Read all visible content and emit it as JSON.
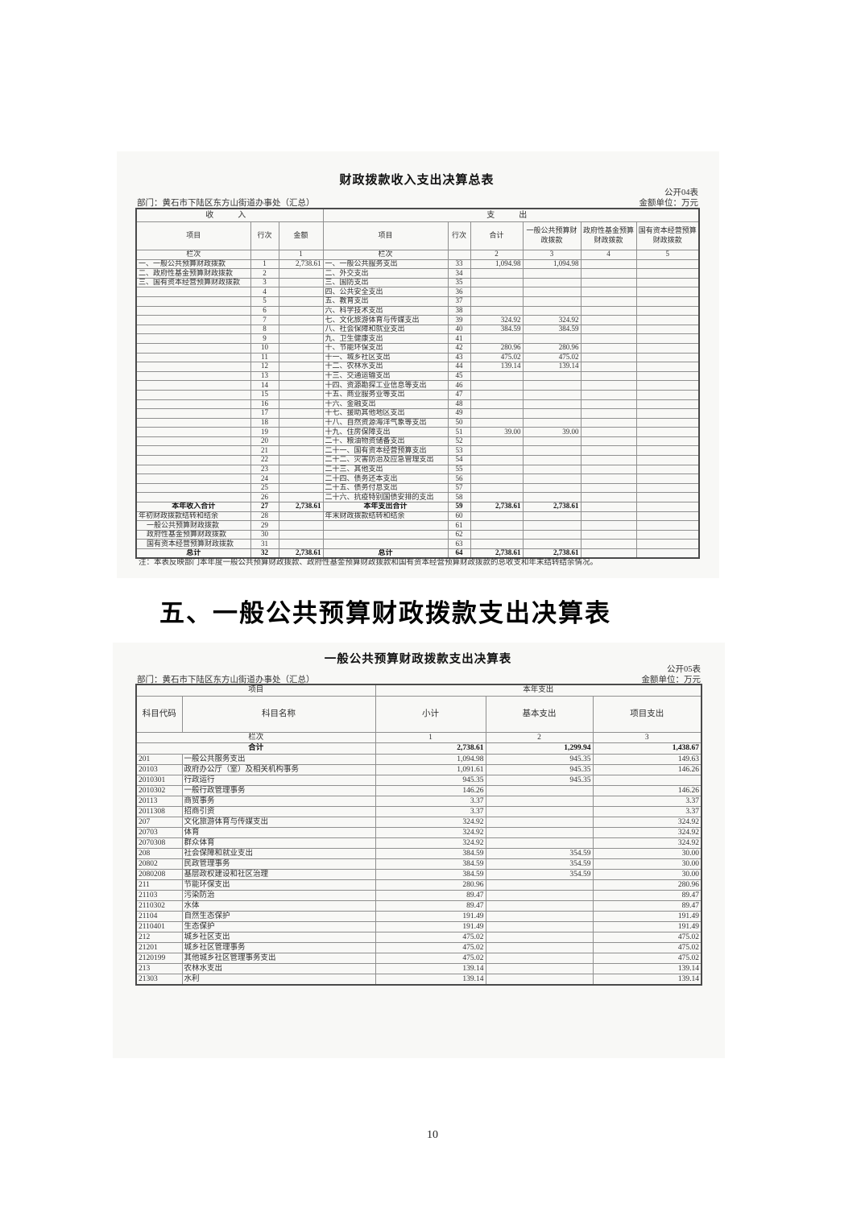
{
  "page_number": "10",
  "section_heading": "五、一般公共预算财政拨款支出决算表",
  "table1": {
    "title": "财政拨款收入支出决算总表",
    "form_code": "公开04表",
    "department": "部门：黄石市下陆区东方山街道办事处（汇总）",
    "unit_label": "金额单位：万元",
    "group_income": "收　入",
    "group_expense": "支　出",
    "col_headers": [
      "项目",
      "行次",
      "金额",
      "项目",
      "行次",
      "合计",
      "一般公共预算财政拨款",
      "政府性基金预算财政拨款",
      "国有资本经营预算财政拨款"
    ],
    "rows": [
      {
        "c": [
          "栏次",
          "",
          "1",
          "栏次",
          "",
          "2",
          "3",
          "4",
          "5"
        ],
        "h": 1
      },
      {
        "c": [
          "一、一般公共预算财政拨款",
          "1",
          "2,738.61",
          "一、一般公共服务支出",
          "33",
          "1,094.98",
          "1,094.98",
          "",
          ""
        ]
      },
      {
        "c": [
          "二、政府性基金预算财政拨款",
          "2",
          "",
          "二、外交支出",
          "34",
          "",
          "",
          "",
          ""
        ]
      },
      {
        "c": [
          "三、国有资本经营预算财政拨款",
          "3",
          "",
          "三、国防支出",
          "35",
          "",
          "",
          "",
          ""
        ]
      },
      {
        "c": [
          "",
          "4",
          "",
          "四、公共安全支出",
          "36",
          "",
          "",
          "",
          ""
        ]
      },
      {
        "c": [
          "",
          "5",
          "",
          "五、教育支出",
          "37",
          "",
          "",
          "",
          ""
        ]
      },
      {
        "c": [
          "",
          "6",
          "",
          "六、科学技术支出",
          "38",
          "",
          "",
          "",
          ""
        ]
      },
      {
        "c": [
          "",
          "7",
          "",
          "七、文化旅游体育与传媒支出",
          "39",
          "324.92",
          "324.92",
          "",
          ""
        ]
      },
      {
        "c": [
          "",
          "8",
          "",
          "八、社会保障和就业支出",
          "40",
          "384.59",
          "384.59",
          "",
          ""
        ]
      },
      {
        "c": [
          "",
          "9",
          "",
          "九、卫生健康支出",
          "41",
          "",
          "",
          "",
          ""
        ]
      },
      {
        "c": [
          "",
          "10",
          "",
          "十、节能环保支出",
          "42",
          "280.96",
          "280.96",
          "",
          ""
        ]
      },
      {
        "c": [
          "",
          "11",
          "",
          "十一、城乡社区支出",
          "43",
          "475.02",
          "475.02",
          "",
          ""
        ]
      },
      {
        "c": [
          "",
          "12",
          "",
          "十二、农林水支出",
          "44",
          "139.14",
          "139.14",
          "",
          ""
        ]
      },
      {
        "c": [
          "",
          "13",
          "",
          "十三、交通运输支出",
          "45",
          "",
          "",
          "",
          ""
        ]
      },
      {
        "c": [
          "",
          "14",
          "",
          "十四、资源勘探工业信息等支出",
          "46",
          "",
          "",
          "",
          ""
        ]
      },
      {
        "c": [
          "",
          "15",
          "",
          "十五、商业服务业等支出",
          "47",
          "",
          "",
          "",
          ""
        ]
      },
      {
        "c": [
          "",
          "16",
          "",
          "十六、金融支出",
          "48",
          "",
          "",
          "",
          ""
        ]
      },
      {
        "c": [
          "",
          "17",
          "",
          "十七、援助其他地区支出",
          "49",
          "",
          "",
          "",
          ""
        ]
      },
      {
        "c": [
          "",
          "18",
          "",
          "十八、自然资源海洋气象等支出",
          "50",
          "",
          "",
          "",
          ""
        ]
      },
      {
        "c": [
          "",
          "19",
          "",
          "十九、住房保障支出",
          "51",
          "39.00",
          "39.00",
          "",
          ""
        ]
      },
      {
        "c": [
          "",
          "20",
          "",
          "二十、粮油物资储备支出",
          "52",
          "",
          "",
          "",
          ""
        ]
      },
      {
        "c": [
          "",
          "21",
          "",
          "二十一、国有资本经营预算支出",
          "53",
          "",
          "",
          "",
          ""
        ]
      },
      {
        "c": [
          "",
          "22",
          "",
          "二十二、灾害防治及应急管理支出",
          "54",
          "",
          "",
          "",
          ""
        ]
      },
      {
        "c": [
          "",
          "23",
          "",
          "二十三、其他支出",
          "55",
          "",
          "",
          "",
          ""
        ]
      },
      {
        "c": [
          "",
          "24",
          "",
          "二十四、债务还本支出",
          "56",
          "",
          "",
          "",
          ""
        ]
      },
      {
        "c": [
          "",
          "25",
          "",
          "二十五、债务付息支出",
          "57",
          "",
          "",
          "",
          ""
        ]
      },
      {
        "c": [
          "",
          "26",
          "",
          "二十六、抗疫特别国债安排的支出",
          "58",
          "",
          "",
          "",
          ""
        ]
      },
      {
        "c": [
          "本年收入合计",
          "27",
          "2,738.61",
          "本年支出合计",
          "59",
          "2,738.61",
          "2,738.61",
          "",
          ""
        ],
        "b": 1
      },
      {
        "c": [
          "年初财政拨款结转和结余",
          "28",
          "",
          "年末财政拨款结转和结余",
          "60",
          "",
          "",
          "",
          ""
        ]
      },
      {
        "c": [
          "一般公共预算财政拨款",
          "29",
          "",
          "",
          "61",
          "",
          "",
          "",
          ""
        ],
        "i": 1
      },
      {
        "c": [
          "政府性基金预算财政拨款",
          "30",
          "",
          "",
          "62",
          "",
          "",
          "",
          ""
        ],
        "i": 1
      },
      {
        "c": [
          "国有资本经营预算财政拨款",
          "31",
          "",
          "",
          "63",
          "",
          "",
          "",
          ""
        ],
        "i": 1
      },
      {
        "c": [
          "总计",
          "32",
          "2,738.61",
          "总计",
          "64",
          "2,738.61",
          "2,738.61",
          "",
          ""
        ],
        "b": 1
      }
    ],
    "note": "注：本表反映部门本年度一般公共预算财政拨款、政府性基金预算财政拨款和国有资本经营预算财政拨款的总收支和年末结转结余情况。"
  },
  "table2": {
    "title": "一般公共预算财政拨款支出决算表",
    "form_code": "公开05表",
    "department": "部门：黄石市下陆区东方山街道办事处（汇总）",
    "unit_label": "金额单位：万元",
    "group_item": "项目",
    "group_year": "本年支出",
    "col_headers": [
      "科目代码",
      "科目名称",
      "小计",
      "基本支出",
      "项目支出"
    ],
    "lane_label": "栏次",
    "lane_cols": [
      "1",
      "2",
      "3"
    ],
    "total_label": "合计",
    "total_values": [
      "2,738.61",
      "1,299.94",
      "1,438.67"
    ],
    "rows": [
      {
        "c": [
          "201",
          "一般公共服务支出",
          "1,094.98",
          "945.35",
          "149.63"
        ]
      },
      {
        "c": [
          "20103",
          "政府办公厅（室）及相关机构事务",
          "1,091.61",
          "945.35",
          "146.26"
        ]
      },
      {
        "c": [
          "2010301",
          "行政运行",
          "945.35",
          "945.35",
          ""
        ]
      },
      {
        "c": [
          "2010302",
          "一般行政管理事务",
          "146.26",
          "",
          "146.26"
        ]
      },
      {
        "c": [
          "20113",
          "商贸事务",
          "3.37",
          "",
          "3.37"
        ]
      },
      {
        "c": [
          "2011308",
          "招商引资",
          "3.37",
          "",
          "3.37"
        ]
      },
      {
        "c": [
          "207",
          "文化旅游体育与传媒支出",
          "324.92",
          "",
          "324.92"
        ]
      },
      {
        "c": [
          "20703",
          "体育",
          "324.92",
          "",
          "324.92"
        ]
      },
      {
        "c": [
          "2070308",
          "群众体育",
          "324.92",
          "",
          "324.92"
        ]
      },
      {
        "c": [
          "208",
          "社会保障和就业支出",
          "384.59",
          "354.59",
          "30.00"
        ]
      },
      {
        "c": [
          "20802",
          "民政管理事务",
          "384.59",
          "354.59",
          "30.00"
        ]
      },
      {
        "c": [
          "2080208",
          "基层政权建设和社区治理",
          "384.59",
          "354.59",
          "30.00"
        ]
      },
      {
        "c": [
          "211",
          "节能环保支出",
          "280.96",
          "",
          "280.96"
        ]
      },
      {
        "c": [
          "21103",
          "污染防治",
          "89.47",
          "",
          "89.47"
        ]
      },
      {
        "c": [
          "2110302",
          "水体",
          "89.47",
          "",
          "89.47"
        ]
      },
      {
        "c": [
          "21104",
          "自然生态保护",
          "191.49",
          "",
          "191.49"
        ]
      },
      {
        "c": [
          "2110401",
          "生态保护",
          "191.49",
          "",
          "191.49"
        ]
      },
      {
        "c": [
          "212",
          "城乡社区支出",
          "475.02",
          "",
          "475.02"
        ]
      },
      {
        "c": [
          "21201",
          "城乡社区管理事务",
          "475.02",
          "",
          "475.02"
        ]
      },
      {
        "c": [
          "2120199",
          "其他城乡社区管理事务支出",
          "475.02",
          "",
          "475.02"
        ]
      },
      {
        "c": [
          "213",
          "农林水支出",
          "139.14",
          "",
          "139.14"
        ]
      },
      {
        "c": [
          "21303",
          "水利",
          "139.14",
          "",
          "139.14"
        ]
      }
    ]
  }
}
